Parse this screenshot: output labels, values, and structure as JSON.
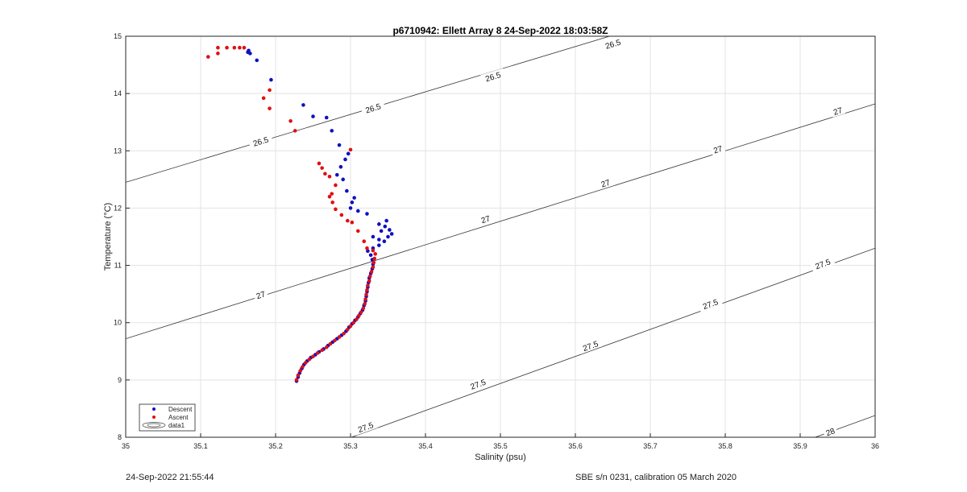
{
  "chart_data": {
    "type": "scatter",
    "title": "p6710942: Ellett Array 8 24-Sep-2022 18:03:58Z",
    "xlabel": "Salinity (psu)",
    "ylabel": "Temperature (°C)",
    "xlim": [
      35,
      36
    ],
    "ylim": [
      8,
      15
    ],
    "xticks": [
      "35",
      "35.1",
      "35.2",
      "35.3",
      "35.4",
      "35.5",
      "35.6",
      "35.7",
      "35.8",
      "35.9",
      "36"
    ],
    "yticks": [
      "8",
      "9",
      "10",
      "11",
      "12",
      "13",
      "14",
      "15"
    ],
    "grid": true,
    "legend_position": "bottom-left",
    "legend": [
      "Descent",
      "Ascent",
      "data1"
    ],
    "colors": {
      "descent": "#1010c0",
      "ascent": "#e01010",
      "contour": "#333333",
      "grid": "#e3e3e3"
    },
    "contours": [
      {
        "level": 26.5,
        "label": "26.5",
        "points": [
          [
            35.0,
            12.45
          ],
          [
            36.0,
            16.4
          ]
        ],
        "label_positions": [
          [
            35.18,
            13.17
          ],
          [
            35.33,
            13.75
          ],
          [
            35.49,
            14.3
          ],
          [
            35.65,
            14.87
          ]
        ]
      },
      {
        "level": 27,
        "label": "27",
        "points": [
          [
            35.0,
            9.72
          ],
          [
            36.0,
            13.82
          ]
        ],
        "label_positions": [
          [
            35.18,
            10.49
          ],
          [
            35.48,
            11.81
          ],
          [
            35.64,
            12.44
          ],
          [
            35.79,
            13.03
          ],
          [
            35.95,
            13.7
          ]
        ]
      },
      {
        "level": 27.5,
        "label": "27.5",
        "points": [
          [
            35.28,
            7.9
          ],
          [
            36.0,
            11.3
          ]
        ],
        "label_positions": [
          [
            35.32,
            8.18
          ],
          [
            35.47,
            8.93
          ],
          [
            35.62,
            9.6
          ],
          [
            35.78,
            10.33
          ],
          [
            35.93,
            11.03
          ]
        ]
      },
      {
        "level": 28,
        "label": "28",
        "points": [
          [
            35.92,
            8.0
          ],
          [
            36.0,
            8.38
          ]
        ],
        "label_positions": [
          [
            35.94,
            8.1
          ]
        ]
      }
    ],
    "series": [
      {
        "name": "Descent",
        "points": [
          [
            35.228,
            8.98
          ],
          [
            35.23,
            9.05
          ],
          [
            35.232,
            9.12
          ],
          [
            35.235,
            9.2
          ],
          [
            35.238,
            9.27
          ],
          [
            35.242,
            9.33
          ],
          [
            35.247,
            9.39
          ],
          [
            35.253,
            9.44
          ],
          [
            35.258,
            9.49
          ],
          [
            35.264,
            9.54
          ],
          [
            35.27,
            9.6
          ],
          [
            35.276,
            9.66
          ],
          [
            35.282,
            9.72
          ],
          [
            35.288,
            9.78
          ],
          [
            35.294,
            9.85
          ],
          [
            35.298,
            9.92
          ],
          [
            35.302,
            9.98
          ],
          [
            35.306,
            10.04
          ],
          [
            35.31,
            10.1
          ],
          [
            35.313,
            10.16
          ],
          [
            35.316,
            10.22
          ],
          [
            35.318,
            10.3
          ],
          [
            35.32,
            10.38
          ],
          [
            35.321,
            10.46
          ],
          [
            35.322,
            10.54
          ],
          [
            35.323,
            10.62
          ],
          [
            35.324,
            10.7
          ],
          [
            35.325,
            10.78
          ],
          [
            35.327,
            10.86
          ],
          [
            35.329,
            10.94
          ],
          [
            35.33,
            11.02
          ],
          [
            35.329,
            11.1
          ],
          [
            35.327,
            11.18
          ],
          [
            35.323,
            11.25
          ],
          [
            35.33,
            11.3
          ],
          [
            35.338,
            11.35
          ],
          [
            35.345,
            11.42
          ],
          [
            35.35,
            11.5
          ],
          [
            35.355,
            11.55
          ],
          [
            35.352,
            11.62
          ],
          [
            35.346,
            11.68
          ],
          [
            35.341,
            11.6
          ],
          [
            35.338,
            11.72
          ],
          [
            35.348,
            11.78
          ],
          [
            35.338,
            11.45
          ],
          [
            35.33,
            11.5
          ],
          [
            35.322,
            11.9
          ],
          [
            35.31,
            11.95
          ],
          [
            35.302,
            12.1
          ],
          [
            35.3,
            12.0
          ],
          [
            35.305,
            12.18
          ],
          [
            35.295,
            12.3
          ],
          [
            35.29,
            12.5
          ],
          [
            35.282,
            12.58
          ],
          [
            35.287,
            12.72
          ],
          [
            35.293,
            12.85
          ],
          [
            35.297,
            12.95
          ],
          [
            35.285,
            13.1
          ],
          [
            35.275,
            13.35
          ],
          [
            35.268,
            13.58
          ],
          [
            35.25,
            13.6
          ],
          [
            35.237,
            13.8
          ],
          [
            35.194,
            14.24
          ],
          [
            35.175,
            14.58
          ],
          [
            35.166,
            14.7
          ],
          [
            35.164,
            14.75
          ],
          [
            35.163,
            14.72
          ]
        ]
      },
      {
        "name": "Ascent",
        "points": [
          [
            35.228,
            9.0
          ],
          [
            35.23,
            9.08
          ],
          [
            35.233,
            9.16
          ],
          [
            35.236,
            9.23
          ],
          [
            35.24,
            9.3
          ],
          [
            35.245,
            9.36
          ],
          [
            35.25,
            9.41
          ],
          [
            35.256,
            9.47
          ],
          [
            35.262,
            9.52
          ],
          [
            35.268,
            9.57
          ],
          [
            35.273,
            9.63
          ],
          [
            35.279,
            9.69
          ],
          [
            35.285,
            9.75
          ],
          [
            35.291,
            9.81
          ],
          [
            35.296,
            9.88
          ],
          [
            35.3,
            9.94
          ],
          [
            35.304,
            10.0
          ],
          [
            35.308,
            10.06
          ],
          [
            35.311,
            10.12
          ],
          [
            35.314,
            10.18
          ],
          [
            35.317,
            10.25
          ],
          [
            35.319,
            10.33
          ],
          [
            35.32,
            10.41
          ],
          [
            35.321,
            10.49
          ],
          [
            35.322,
            10.57
          ],
          [
            35.323,
            10.65
          ],
          [
            35.325,
            10.73
          ],
          [
            35.326,
            10.81
          ],
          [
            35.328,
            10.89
          ],
          [
            35.33,
            10.97
          ],
          [
            35.331,
            11.05
          ],
          [
            35.332,
            11.12
          ],
          [
            35.333,
            11.2
          ],
          [
            35.33,
            11.26
          ],
          [
            35.322,
            11.3
          ],
          [
            35.318,
            11.42
          ],
          [
            35.31,
            11.6
          ],
          [
            35.302,
            11.75
          ],
          [
            35.296,
            11.78
          ],
          [
            35.288,
            11.88
          ],
          [
            35.28,
            11.98
          ],
          [
            35.276,
            12.1
          ],
          [
            35.272,
            12.2
          ],
          [
            35.275,
            12.25
          ],
          [
            35.28,
            12.4
          ],
          [
            35.272,
            12.55
          ],
          [
            35.266,
            12.6
          ],
          [
            35.262,
            12.7
          ],
          [
            35.258,
            12.78
          ],
          [
            35.3,
            13.02
          ],
          [
            35.226,
            13.35
          ],
          [
            35.22,
            13.52
          ],
          [
            35.192,
            13.74
          ],
          [
            35.184,
            13.92
          ],
          [
            35.192,
            14.06
          ],
          [
            35.11,
            14.64
          ],
          [
            35.123,
            14.7
          ],
          [
            35.123,
            14.8
          ],
          [
            35.135,
            14.8
          ],
          [
            35.145,
            14.8
          ],
          [
            35.152,
            14.8
          ],
          [
            35.158,
            14.8
          ]
        ]
      }
    ]
  },
  "footer": {
    "timestamp": "24-Sep-2022 21:55:44",
    "instrument": "SBE s/n 0231, calibration 05 March 2020"
  }
}
